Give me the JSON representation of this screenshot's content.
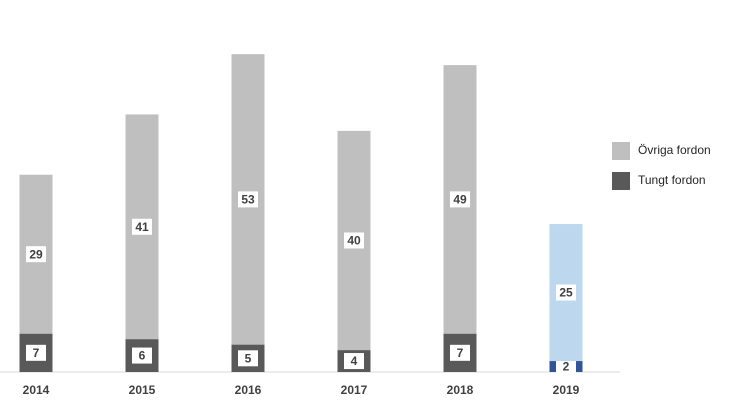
{
  "chart_data": {
    "type": "stacked_bar",
    "categories": [
      "2014",
      "2015",
      "2016",
      "2017",
      "2018",
      "2019"
    ],
    "series": [
      {
        "name": "Tungt fordon",
        "color": "#595959",
        "colors": [
          "#595959",
          "#595959",
          "#595959",
          "#595959",
          "#595959",
          "#2f5597"
        ],
        "values": [
          7,
          6,
          5,
          4,
          7,
          2
        ]
      },
      {
        "name": "Övriga fordon",
        "color": "#bfbfbf",
        "colors": [
          "#bfbfbf",
          "#bfbfbf",
          "#bfbfbf",
          "#bfbfbf",
          "#bfbfbf",
          "#bdd7ee"
        ],
        "values": [
          29,
          41,
          53,
          40,
          49,
          25
        ]
      }
    ]
  }
}
